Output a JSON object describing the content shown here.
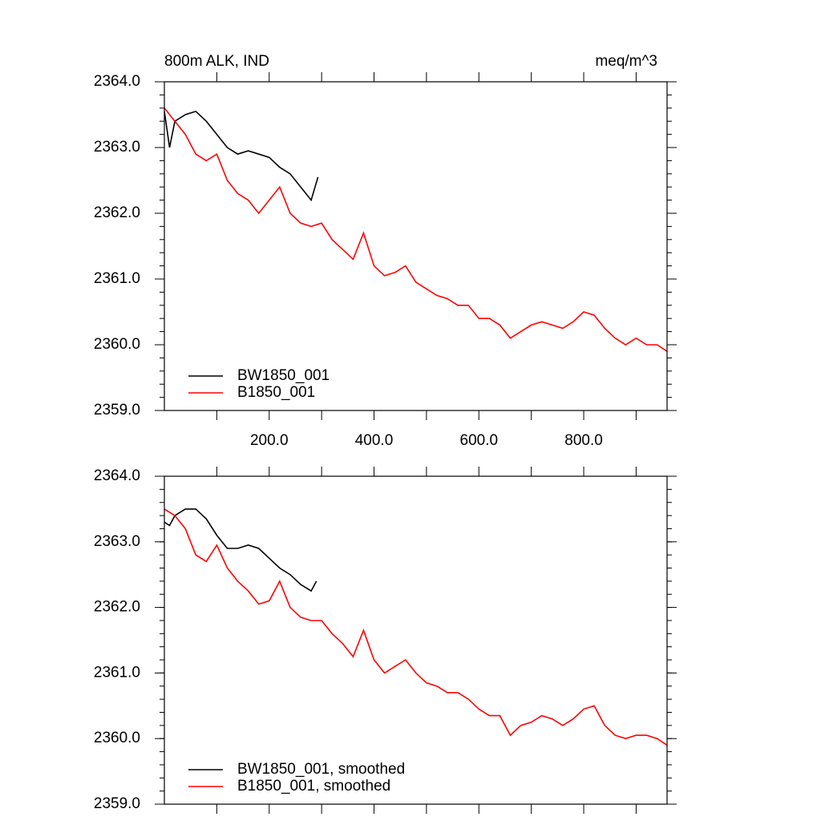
{
  "chart_data": [
    {
      "type": "line",
      "title": "800m ALK, IND",
      "units": "meq/m^3",
      "xlim": [
        0,
        959
      ],
      "ylim": [
        2359,
        2364
      ],
      "xticks": [
        {
          "value": 200,
          "label": "200.0"
        },
        {
          "value": 400,
          "label": "400.0"
        },
        {
          "value": 600,
          "label": "600.0"
        },
        {
          "value": 800,
          "label": "800.0"
        }
      ],
      "xminorticks": [
        100,
        300,
        500,
        700,
        900
      ],
      "yticks": [
        {
          "value": 2359,
          "label": "2359.0"
        },
        {
          "value": 2360,
          "label": "2360.0"
        },
        {
          "value": 2361,
          "label": "2361.0"
        },
        {
          "value": 2362,
          "label": "2362.0"
        },
        {
          "value": 2363,
          "label": "2363.0"
        },
        {
          "value": 2364,
          "label": "2364.0"
        }
      ],
      "yminor_step": 0.2,
      "xtick_labels": true,
      "legend": "lower-left",
      "series": [
        {
          "name": "BW1850_001",
          "color": "#000000",
          "x": [
            0,
            10,
            20,
            40,
            60,
            80,
            100,
            120,
            140,
            160,
            180,
            200,
            220,
            240,
            260,
            280,
            293
          ],
          "values": [
            2363.55,
            2363.0,
            2363.4,
            2363.5,
            2363.55,
            2363.4,
            2363.2,
            2363.0,
            2362.9,
            2362.95,
            2362.9,
            2362.85,
            2362.7,
            2362.6,
            2362.4,
            2362.2,
            2362.55
          ]
        },
        {
          "name": "B1850_001",
          "color": "#ff0000",
          "x": [
            0,
            20,
            40,
            60,
            80,
            100,
            120,
            140,
            160,
            180,
            200,
            220,
            240,
            260,
            280,
            300,
            320,
            340,
            360,
            380,
            400,
            420,
            440,
            460,
            480,
            500,
            520,
            540,
            560,
            580,
            600,
            620,
            640,
            660,
            680,
            700,
            720,
            740,
            760,
            780,
            800,
            820,
            840,
            860,
            880,
            900,
            920,
            940,
            959
          ],
          "values": [
            2363.6,
            2363.4,
            2363.2,
            2362.9,
            2362.8,
            2362.9,
            2362.5,
            2362.3,
            2362.2,
            2362.0,
            2362.2,
            2362.4,
            2362.0,
            2361.85,
            2361.8,
            2361.85,
            2361.6,
            2361.45,
            2361.3,
            2361.7,
            2361.2,
            2361.05,
            2361.1,
            2361.2,
            2360.95,
            2360.85,
            2360.75,
            2360.7,
            2360.6,
            2360.6,
            2360.4,
            2360.4,
            2360.3,
            2360.1,
            2360.2,
            2360.3,
            2360.35,
            2360.3,
            2360.25,
            2360.35,
            2360.5,
            2360.45,
            2360.25,
            2360.1,
            2360.0,
            2360.1,
            2360.0,
            2360.0,
            2359.9
          ]
        }
      ]
    },
    {
      "type": "line",
      "xlim": [
        0,
        959
      ],
      "ylim": [
        2359,
        2364
      ],
      "xticks": [
        200,
        400,
        600,
        800
      ],
      "xminorticks": [
        100,
        300,
        500,
        700,
        900
      ],
      "yticks": [
        {
          "value": 2359,
          "label": "2359.0"
        },
        {
          "value": 2360,
          "label": "2360.0"
        },
        {
          "value": 2361,
          "label": "2361.0"
        },
        {
          "value": 2362,
          "label": "2362.0"
        },
        {
          "value": 2363,
          "label": "2363.0"
        },
        {
          "value": 2364,
          "label": "2364.0"
        }
      ],
      "yminor_step": 0.2,
      "xtick_labels": false,
      "legend": "lower-left",
      "series": [
        {
          "name": "BW1850_001, smoothed",
          "color": "#000000",
          "x": [
            0,
            10,
            20,
            40,
            60,
            80,
            100,
            120,
            140,
            160,
            180,
            200,
            220,
            240,
            260,
            280,
            290
          ],
          "values": [
            2363.3,
            2363.25,
            2363.4,
            2363.5,
            2363.5,
            2363.35,
            2363.1,
            2362.9,
            2362.9,
            2362.95,
            2362.9,
            2362.75,
            2362.6,
            2362.5,
            2362.35,
            2362.25,
            2362.4
          ]
        },
        {
          "name": "B1850_001, smoothed",
          "color": "#ff0000",
          "x": [
            0,
            20,
            40,
            60,
            80,
            100,
            120,
            140,
            160,
            180,
            200,
            220,
            240,
            260,
            280,
            300,
            320,
            340,
            360,
            380,
            400,
            420,
            440,
            460,
            480,
            500,
            520,
            540,
            560,
            580,
            600,
            620,
            640,
            660,
            680,
            700,
            720,
            740,
            760,
            780,
            800,
            820,
            840,
            860,
            880,
            900,
            920,
            940,
            959
          ],
          "values": [
            2363.5,
            2363.4,
            2363.2,
            2362.8,
            2362.7,
            2362.95,
            2362.6,
            2362.4,
            2362.25,
            2362.05,
            2362.1,
            2362.4,
            2362.0,
            2361.85,
            2361.8,
            2361.8,
            2361.6,
            2361.45,
            2361.25,
            2361.65,
            2361.2,
            2361.0,
            2361.1,
            2361.2,
            2361.0,
            2360.85,
            2360.8,
            2360.7,
            2360.7,
            2360.6,
            2360.45,
            2360.35,
            2360.35,
            2360.05,
            2360.2,
            2360.25,
            2360.35,
            2360.3,
            2360.2,
            2360.3,
            2360.45,
            2360.5,
            2360.2,
            2360.05,
            2360.0,
            2360.05,
            2360.05,
            2360.0,
            2359.9
          ]
        }
      ]
    }
  ]
}
